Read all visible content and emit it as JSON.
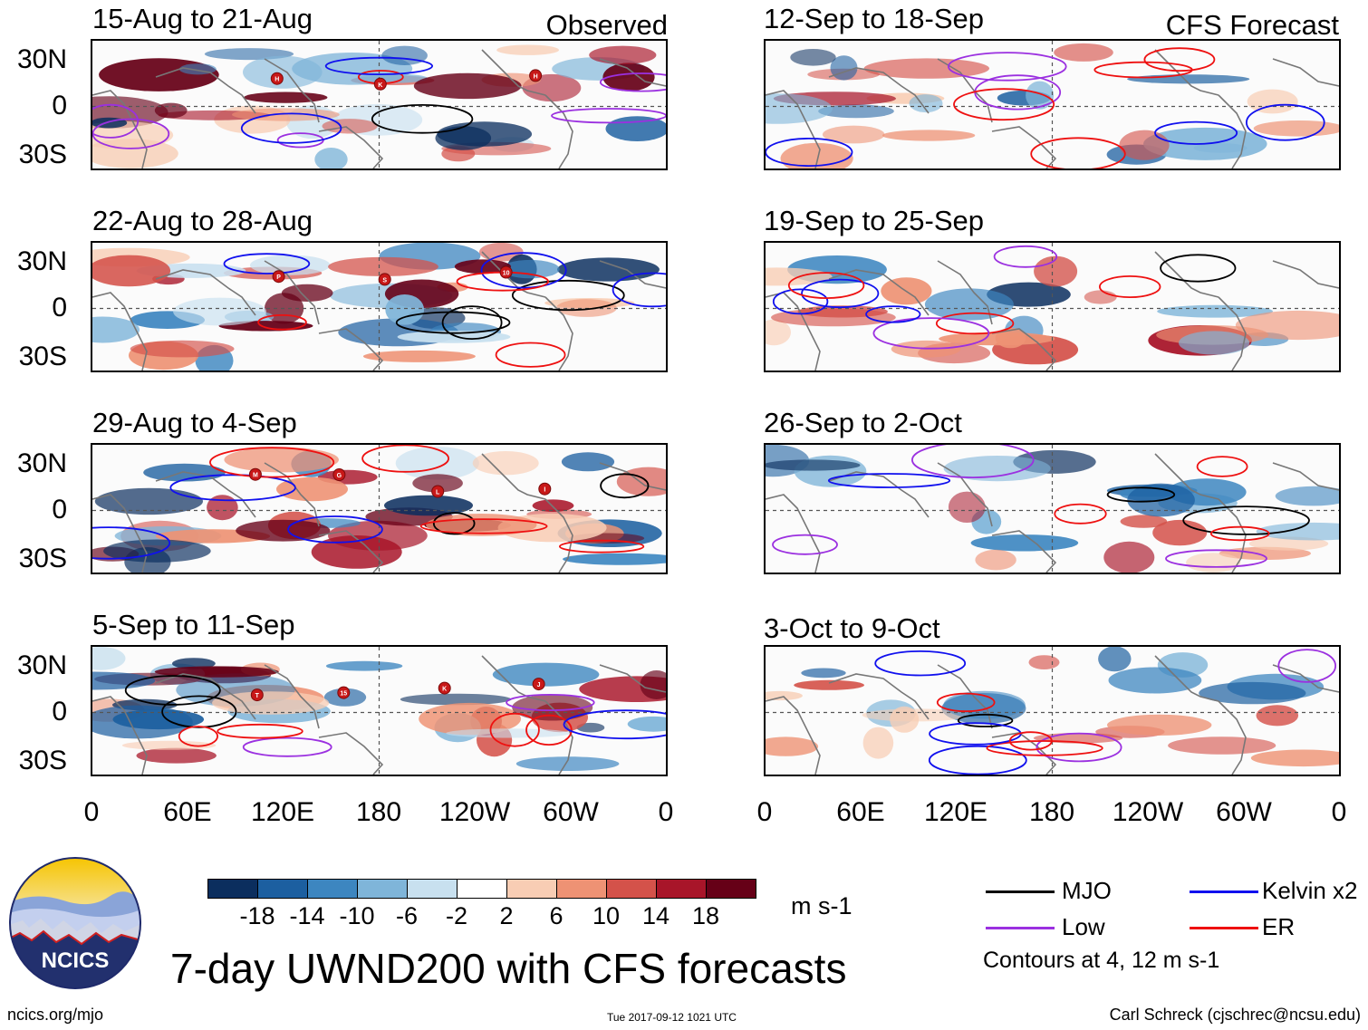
{
  "header": {
    "left_tag": "Observed",
    "right_tag": "CFS Forecast"
  },
  "panels": [
    {
      "title": "15-Aug to 21-Aug",
      "storms": [
        "H",
        "K",
        "H"
      ]
    },
    {
      "title": "22-Aug to 28-Aug",
      "storms": [
        "P",
        "S",
        "10"
      ]
    },
    {
      "title": "29-Aug to 4-Sep",
      "storms": [
        "M",
        "G",
        "L",
        "I"
      ]
    },
    {
      "title": "5-Sep to 11-Sep",
      "storms": [
        "T",
        "15",
        "K",
        "J"
      ]
    },
    {
      "title": "12-Sep to 18-Sep",
      "storms": []
    },
    {
      "title": "19-Sep to 25-Sep",
      "storms": []
    },
    {
      "title": "26-Sep to 2-Oct",
      "storms": []
    },
    {
      "title": "3-Oct to 9-Oct",
      "storms": []
    }
  ],
  "y_axis_labels": [
    "30N",
    "0",
    "30S"
  ],
  "x_axis_labels": [
    "0",
    "60E",
    "120E",
    "180",
    "120W",
    "60W",
    "0"
  ],
  "colorbar": {
    "unit": "m s-1",
    "ticks": [
      "-18",
      "-14",
      "-10",
      "-6",
      "-2",
      "2",
      "6",
      "10",
      "14",
      "18"
    ],
    "colors": [
      "#0b2e5e",
      "#1c5fa0",
      "#3d86c0",
      "#7fb5d9",
      "#c8e0ef",
      "#ffffff",
      "#f8cdb4",
      "#ee9274",
      "#d4524a",
      "#a81529",
      "#660017"
    ]
  },
  "legend": {
    "items": [
      {
        "label": "MJO",
        "color": "#000000"
      },
      {
        "label": "Kelvin x2",
        "color": "#1010ee"
      },
      {
        "label": "Low",
        "color": "#9b30e0"
      },
      {
        "label": "ER",
        "color": "#ee1010"
      }
    ],
    "note": "Contours at 4, 12 m s-1"
  },
  "footer": {
    "main_title": "7-day UWND200 with CFS forecasts",
    "logo_text": "NCICS",
    "url": "ncics.org/mjo",
    "timestamp": "Tue 2017-09-12 1021 UTC",
    "credit": "Carl Schreck (cjschrec@ncsu.edu)"
  }
}
